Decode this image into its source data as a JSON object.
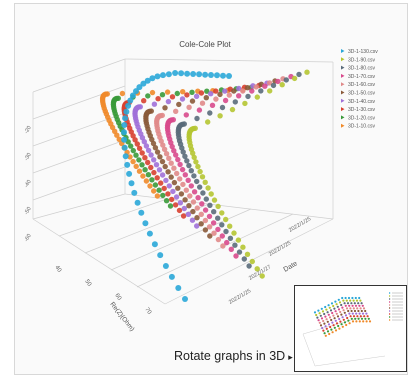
{
  "chart_data": {
    "type": "scatter",
    "projection": "3d",
    "title": "Cole-Cole Plot",
    "xlabel": "Re(Z)(Ohm)",
    "ylabel": "Date",
    "zlabel": "",
    "x_ticks": [
      "40",
      "50",
      "60",
      "70"
    ],
    "date_ticks": [
      "2022/1/25",
      "2022/1/25",
      "2022/1/27",
      "2022/1/25"
    ],
    "z_ticks": [
      "-20",
      "-30",
      "-40",
      "-50",
      "-60"
    ],
    "legend_position": "top-right",
    "series": [
      {
        "name": "3D-1-130.csv",
        "color": "#2aa7d8"
      },
      {
        "name": "3D-1-90.csv",
        "color": "#b5c532"
      },
      {
        "name": "3D-1-80.csv",
        "color": "#5a6b7a"
      },
      {
        "name": "3D-1-70.csv",
        "color": "#d84a8c"
      },
      {
        "name": "3D-1-60.csv",
        "color": "#e08a8a"
      },
      {
        "name": "3D-1-50.csv",
        "color": "#8a5a3a"
      },
      {
        "name": "3D-1-40.csv",
        "color": "#a070d8"
      },
      {
        "name": "3D-1-30.csv",
        "color": "#d84030"
      },
      {
        "name": "3D-1-20.csv",
        "color": "#3a9a3a"
      },
      {
        "name": "3D-1-10.csv",
        "color": "#f08a2a"
      }
    ]
  },
  "caption": {
    "text": "Rotate graphs in 3D",
    "arrow": "▸"
  }
}
